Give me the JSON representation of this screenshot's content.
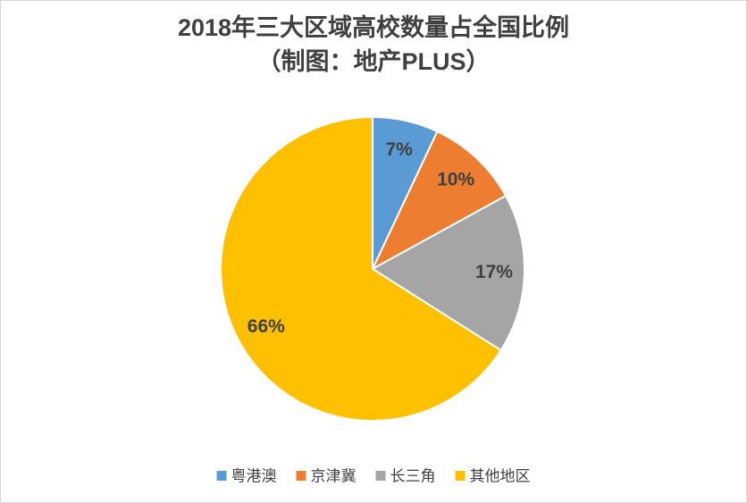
{
  "chart_data": {
    "type": "pie",
    "title": "2018年三大区域高校数量占全国比例",
    "subtitle": "（制图：地产PLUS）",
    "categories": [
      "粤港澳",
      "京津冀",
      "长三角",
      "其他地区"
    ],
    "values": [
      7,
      10,
      17,
      66
    ],
    "value_labels": [
      "7%",
      "10%",
      "17%",
      "66%"
    ],
    "colors": [
      "#5b9bd5",
      "#ed7d31",
      "#a5a5a5",
      "#ffc000"
    ],
    "legend": "bottom"
  }
}
